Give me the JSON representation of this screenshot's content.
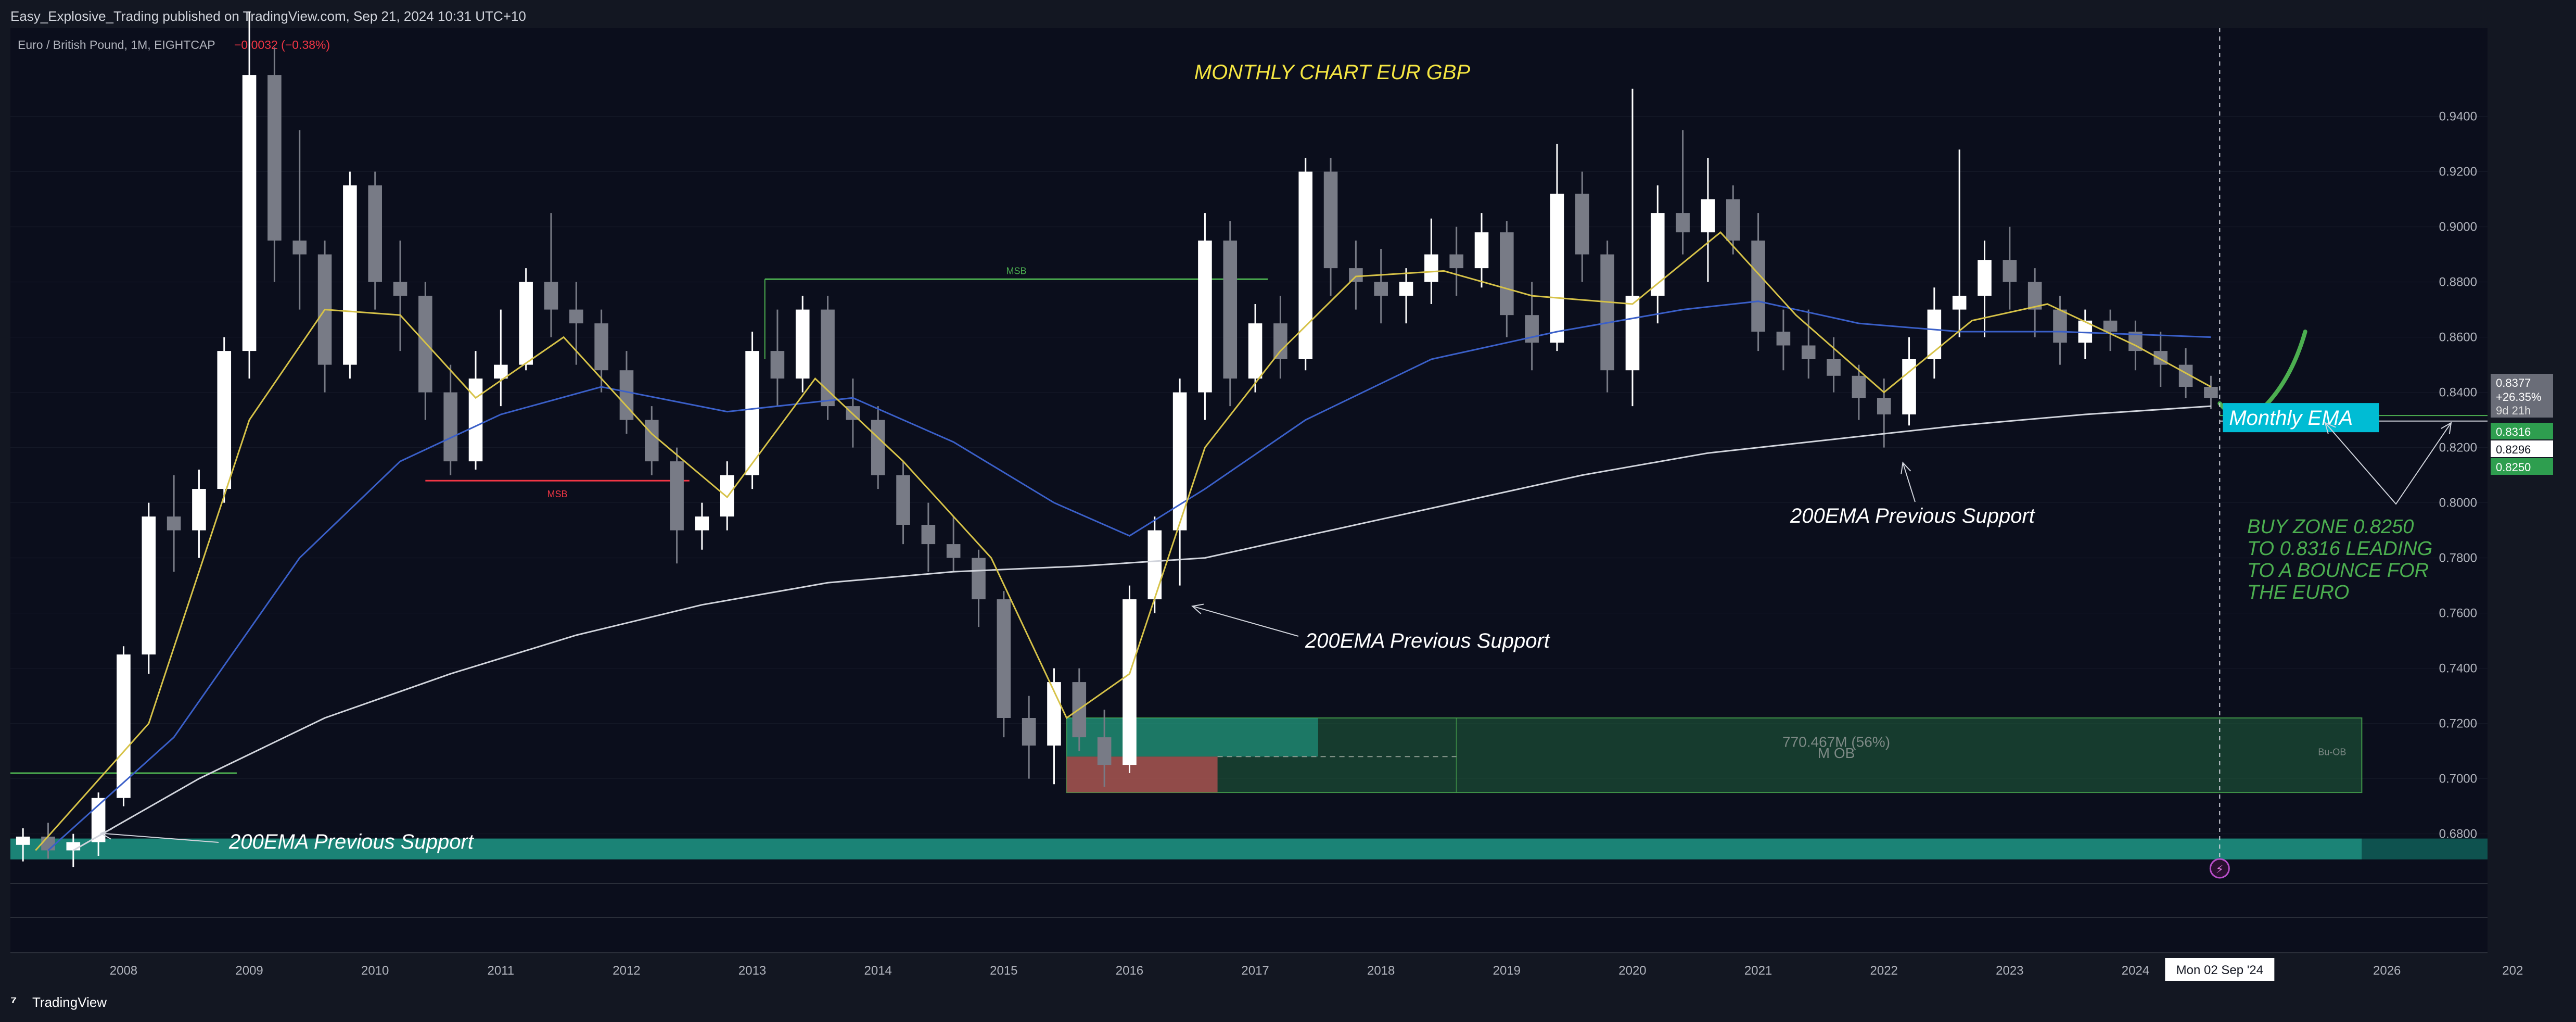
{
  "header": {
    "published_by": "Easy_Explosive_Trading published on TradingView.com, Sep 21, 2024 10:31 UTC+10",
    "symbol": "Euro / British Pound, 1M, EIGHTCAP",
    "change_value": "−0.0032 (−0.38%)"
  },
  "footer": {
    "brand": "TradingView"
  },
  "colors": {
    "background": "#0b0e1c",
    "frame": "#131722",
    "candle_up": "#ffffff",
    "candle_down": "#787b86",
    "ema_fast": "#d6c248",
    "ema_mid": "#3a5fc8",
    "ema_200": "#d1d4dc",
    "msb_green": "#4caf50",
    "msb_red": "#f23645",
    "annotation_yellow": "#f5e642",
    "annotation_green": "#4caf50",
    "ob_fill": "#1e5a3a",
    "ob_bright": "#22ab94",
    "ob_red": "#b05050",
    "monthly_ema_box": "#00bcd4",
    "price_label_green": "#2e9e4f"
  },
  "chart_data": {
    "type": "candlestick",
    "title": "MONTHLY CHART EUR GBP",
    "ylim": [
      0.662,
      0.972
    ],
    "yticks": [
      "0.9400",
      "0.9200",
      "0.9000",
      "0.8800",
      "0.8600",
      "0.8400",
      "0.8200",
      "0.8000",
      "0.7800",
      "0.7600",
      "0.7400",
      "0.7200",
      "0.7000",
      "0.6800"
    ],
    "xticks": [
      "2008",
      "2009",
      "2010",
      "2011",
      "2012",
      "2013",
      "2014",
      "2015",
      "2016",
      "2017",
      "2018",
      "2019",
      "2020",
      "2021",
      "2022",
      "2023",
      "2024",
      "2026",
      "202"
    ],
    "x_range": [
      2007.1,
      2026.8
    ],
    "crosshair": {
      "date_label": "Mon 02 Sep '24",
      "x": 2024.67
    },
    "candles": [
      {
        "year": 2007.2,
        "o": 0.676,
        "h": 0.682,
        "l": 0.67,
        "c": 0.679
      },
      {
        "year": 2007.4,
        "o": 0.679,
        "h": 0.684,
        "l": 0.671,
        "c": 0.674
      },
      {
        "year": 2007.6,
        "o": 0.674,
        "h": 0.68,
        "l": 0.668,
        "c": 0.677
      },
      {
        "year": 2007.8,
        "o": 0.677,
        "h": 0.695,
        "l": 0.672,
        "c": 0.693
      },
      {
        "year": 2008.0,
        "o": 0.693,
        "h": 0.748,
        "l": 0.69,
        "c": 0.745
      },
      {
        "year": 2008.2,
        "o": 0.745,
        "h": 0.8,
        "l": 0.738,
        "c": 0.795
      },
      {
        "year": 2008.4,
        "o": 0.795,
        "h": 0.81,
        "l": 0.775,
        "c": 0.79
      },
      {
        "year": 2008.6,
        "o": 0.79,
        "h": 0.812,
        "l": 0.78,
        "c": 0.805
      },
      {
        "year": 2008.8,
        "o": 0.805,
        "h": 0.86,
        "l": 0.8,
        "c": 0.855
      },
      {
        "year": 2009.0,
        "o": 0.855,
        "h": 0.978,
        "l": 0.845,
        "c": 0.955
      },
      {
        "year": 2009.2,
        "o": 0.955,
        "h": 0.965,
        "l": 0.88,
        "c": 0.895
      },
      {
        "year": 2009.4,
        "o": 0.895,
        "h": 0.935,
        "l": 0.87,
        "c": 0.89
      },
      {
        "year": 2009.6,
        "o": 0.89,
        "h": 0.895,
        "l": 0.84,
        "c": 0.85
      },
      {
        "year": 2009.8,
        "o": 0.85,
        "h": 0.92,
        "l": 0.845,
        "c": 0.915
      },
      {
        "year": 2010.0,
        "o": 0.915,
        "h": 0.92,
        "l": 0.87,
        "c": 0.88
      },
      {
        "year": 2010.2,
        "o": 0.88,
        "h": 0.895,
        "l": 0.855,
        "c": 0.875
      },
      {
        "year": 2010.4,
        "o": 0.875,
        "h": 0.88,
        "l": 0.83,
        "c": 0.84
      },
      {
        "year": 2010.6,
        "o": 0.84,
        "h": 0.85,
        "l": 0.81,
        "c": 0.815
      },
      {
        "year": 2010.8,
        "o": 0.815,
        "h": 0.855,
        "l": 0.812,
        "c": 0.845
      },
      {
        "year": 2011.0,
        "o": 0.845,
        "h": 0.87,
        "l": 0.835,
        "c": 0.85
      },
      {
        "year": 2011.2,
        "o": 0.85,
        "h": 0.885,
        "l": 0.848,
        "c": 0.88
      },
      {
        "year": 2011.4,
        "o": 0.88,
        "h": 0.905,
        "l": 0.86,
        "c": 0.87
      },
      {
        "year": 2011.6,
        "o": 0.87,
        "h": 0.88,
        "l": 0.85,
        "c": 0.865
      },
      {
        "year": 2011.8,
        "o": 0.865,
        "h": 0.87,
        "l": 0.84,
        "c": 0.848
      },
      {
        "year": 2012.0,
        "o": 0.848,
        "h": 0.855,
        "l": 0.825,
        "c": 0.83
      },
      {
        "year": 2012.2,
        "o": 0.83,
        "h": 0.835,
        "l": 0.81,
        "c": 0.815
      },
      {
        "year": 2012.4,
        "o": 0.815,
        "h": 0.82,
        "l": 0.778,
        "c": 0.79
      },
      {
        "year": 2012.6,
        "o": 0.79,
        "h": 0.8,
        "l": 0.783,
        "c": 0.795
      },
      {
        "year": 2012.8,
        "o": 0.795,
        "h": 0.815,
        "l": 0.79,
        "c": 0.81
      },
      {
        "year": 2013.0,
        "o": 0.81,
        "h": 0.862,
        "l": 0.805,
        "c": 0.855
      },
      {
        "year": 2013.2,
        "o": 0.855,
        "h": 0.87,
        "l": 0.835,
        "c": 0.845
      },
      {
        "year": 2013.4,
        "o": 0.845,
        "h": 0.875,
        "l": 0.84,
        "c": 0.87
      },
      {
        "year": 2013.6,
        "o": 0.87,
        "h": 0.875,
        "l": 0.83,
        "c": 0.835
      },
      {
        "year": 2013.8,
        "o": 0.835,
        "h": 0.845,
        "l": 0.82,
        "c": 0.83
      },
      {
        "year": 2014.0,
        "o": 0.83,
        "h": 0.835,
        "l": 0.805,
        "c": 0.81
      },
      {
        "year": 2014.2,
        "o": 0.81,
        "h": 0.815,
        "l": 0.785,
        "c": 0.792
      },
      {
        "year": 2014.4,
        "o": 0.792,
        "h": 0.8,
        "l": 0.775,
        "c": 0.785
      },
      {
        "year": 2014.6,
        "o": 0.785,
        "h": 0.795,
        "l": 0.775,
        "c": 0.78
      },
      {
        "year": 2014.8,
        "o": 0.78,
        "h": 0.783,
        "l": 0.755,
        "c": 0.765
      },
      {
        "year": 2015.0,
        "o": 0.765,
        "h": 0.768,
        "l": 0.715,
        "c": 0.722
      },
      {
        "year": 2015.2,
        "o": 0.722,
        "h": 0.73,
        "l": 0.7,
        "c": 0.712
      },
      {
        "year": 2015.4,
        "o": 0.712,
        "h": 0.74,
        "l": 0.698,
        "c": 0.735
      },
      {
        "year": 2015.6,
        "o": 0.735,
        "h": 0.74,
        "l": 0.71,
        "c": 0.715
      },
      {
        "year": 2015.8,
        "o": 0.715,
        "h": 0.725,
        "l": 0.697,
        "c": 0.705
      },
      {
        "year": 2016.0,
        "o": 0.705,
        "h": 0.77,
        "l": 0.702,
        "c": 0.765
      },
      {
        "year": 2016.2,
        "o": 0.765,
        "h": 0.795,
        "l": 0.76,
        "c": 0.79
      },
      {
        "year": 2016.4,
        "o": 0.79,
        "h": 0.845,
        "l": 0.77,
        "c": 0.84
      },
      {
        "year": 2016.6,
        "o": 0.84,
        "h": 0.905,
        "l": 0.83,
        "c": 0.895
      },
      {
        "year": 2016.8,
        "o": 0.895,
        "h": 0.902,
        "l": 0.835,
        "c": 0.845
      },
      {
        "year": 2017.0,
        "o": 0.845,
        "h": 0.872,
        "l": 0.84,
        "c": 0.865
      },
      {
        "year": 2017.2,
        "o": 0.865,
        "h": 0.875,
        "l": 0.845,
        "c": 0.852
      },
      {
        "year": 2017.4,
        "o": 0.852,
        "h": 0.925,
        "l": 0.848,
        "c": 0.92
      },
      {
        "year": 2017.6,
        "o": 0.92,
        "h": 0.925,
        "l": 0.875,
        "c": 0.885
      },
      {
        "year": 2017.8,
        "o": 0.885,
        "h": 0.895,
        "l": 0.87,
        "c": 0.88
      },
      {
        "year": 2018.0,
        "o": 0.88,
        "h": 0.892,
        "l": 0.865,
        "c": 0.875
      },
      {
        "year": 2018.2,
        "o": 0.875,
        "h": 0.885,
        "l": 0.865,
        "c": 0.88
      },
      {
        "year": 2018.4,
        "o": 0.88,
        "h": 0.903,
        "l": 0.872,
        "c": 0.89
      },
      {
        "year": 2018.6,
        "o": 0.89,
        "h": 0.9,
        "l": 0.875,
        "c": 0.885
      },
      {
        "year": 2018.8,
        "o": 0.885,
        "h": 0.905,
        "l": 0.878,
        "c": 0.898
      },
      {
        "year": 2019.0,
        "o": 0.898,
        "h": 0.902,
        "l": 0.86,
        "c": 0.868
      },
      {
        "year": 2019.2,
        "o": 0.868,
        "h": 0.88,
        "l": 0.848,
        "c": 0.858
      },
      {
        "year": 2019.4,
        "o": 0.858,
        "h": 0.93,
        "l": 0.855,
        "c": 0.912
      },
      {
        "year": 2019.6,
        "o": 0.912,
        "h": 0.92,
        "l": 0.88,
        "c": 0.89
      },
      {
        "year": 2019.8,
        "o": 0.89,
        "h": 0.895,
        "l": 0.84,
        "c": 0.848
      },
      {
        "year": 2020.0,
        "o": 0.848,
        "h": 0.95,
        "l": 0.835,
        "c": 0.875
      },
      {
        "year": 2020.2,
        "o": 0.875,
        "h": 0.915,
        "l": 0.865,
        "c": 0.905
      },
      {
        "year": 2020.4,
        "o": 0.905,
        "h": 0.935,
        "l": 0.89,
        "c": 0.898
      },
      {
        "year": 2020.6,
        "o": 0.898,
        "h": 0.925,
        "l": 0.88,
        "c": 0.91
      },
      {
        "year": 2020.8,
        "o": 0.91,
        "h": 0.915,
        "l": 0.89,
        "c": 0.895
      },
      {
        "year": 2021.0,
        "o": 0.895,
        "h": 0.905,
        "l": 0.855,
        "c": 0.862
      },
      {
        "year": 2021.2,
        "o": 0.862,
        "h": 0.87,
        "l": 0.848,
        "c": 0.857
      },
      {
        "year": 2021.4,
        "o": 0.857,
        "h": 0.87,
        "l": 0.845,
        "c": 0.852
      },
      {
        "year": 2021.6,
        "o": 0.852,
        "h": 0.86,
        "l": 0.84,
        "c": 0.846
      },
      {
        "year": 2021.8,
        "o": 0.846,
        "h": 0.85,
        "l": 0.83,
        "c": 0.838
      },
      {
        "year": 2022.0,
        "o": 0.838,
        "h": 0.845,
        "l": 0.82,
        "c": 0.832
      },
      {
        "year": 2022.2,
        "o": 0.832,
        "h": 0.86,
        "l": 0.828,
        "c": 0.852
      },
      {
        "year": 2022.4,
        "o": 0.852,
        "h": 0.878,
        "l": 0.845,
        "c": 0.87
      },
      {
        "year": 2022.6,
        "o": 0.87,
        "h": 0.928,
        "l": 0.86,
        "c": 0.875
      },
      {
        "year": 2022.8,
        "o": 0.875,
        "h": 0.895,
        "l": 0.86,
        "c": 0.888
      },
      {
        "year": 2023.0,
        "o": 0.888,
        "h": 0.9,
        "l": 0.87,
        "c": 0.88
      },
      {
        "year": 2023.2,
        "o": 0.88,
        "h": 0.885,
        "l": 0.86,
        "c": 0.87
      },
      {
        "year": 2023.4,
        "o": 0.87,
        "h": 0.875,
        "l": 0.85,
        "c": 0.858
      },
      {
        "year": 2023.6,
        "o": 0.858,
        "h": 0.87,
        "l": 0.852,
        "c": 0.866
      },
      {
        "year": 2023.8,
        "o": 0.866,
        "h": 0.87,
        "l": 0.855,
        "c": 0.862
      },
      {
        "year": 2024.0,
        "o": 0.862,
        "h": 0.866,
        "l": 0.848,
        "c": 0.855
      },
      {
        "year": 2024.2,
        "o": 0.855,
        "h": 0.862,
        "l": 0.842,
        "c": 0.85
      },
      {
        "year": 2024.4,
        "o": 0.85,
        "h": 0.856,
        "l": 0.838,
        "c": 0.842
      },
      {
        "year": 2024.6,
        "o": 0.842,
        "h": 0.846,
        "l": 0.834,
        "c": 0.838
      }
    ],
    "ema_fast": [
      [
        2007.3,
        0.674
      ],
      [
        2008.2,
        0.72
      ],
      [
        2009.0,
        0.83
      ],
      [
        2009.6,
        0.87
      ],
      [
        2010.2,
        0.868
      ],
      [
        2010.8,
        0.838
      ],
      [
        2011.5,
        0.86
      ],
      [
        2012.2,
        0.825
      ],
      [
        2012.8,
        0.802
      ],
      [
        2013.5,
        0.845
      ],
      [
        2014.2,
        0.815
      ],
      [
        2014.9,
        0.78
      ],
      [
        2015.5,
        0.722
      ],
      [
        2016.0,
        0.738
      ],
      [
        2016.6,
        0.82
      ],
      [
        2017.2,
        0.855
      ],
      [
        2017.8,
        0.882
      ],
      [
        2018.5,
        0.884
      ],
      [
        2019.2,
        0.875
      ],
      [
        2020.0,
        0.872
      ],
      [
        2020.7,
        0.898
      ],
      [
        2021.3,
        0.868
      ],
      [
        2022.0,
        0.84
      ],
      [
        2022.7,
        0.866
      ],
      [
        2023.3,
        0.872
      ],
      [
        2024.0,
        0.857
      ],
      [
        2024.6,
        0.842
      ]
    ],
    "ema_mid": [
      [
        2007.4,
        0.674
      ],
      [
        2008.4,
        0.715
      ],
      [
        2009.4,
        0.78
      ],
      [
        2010.2,
        0.815
      ],
      [
        2011.0,
        0.832
      ],
      [
        2011.8,
        0.842
      ],
      [
        2012.8,
        0.833
      ],
      [
        2013.8,
        0.838
      ],
      [
        2014.6,
        0.822
      ],
      [
        2015.4,
        0.8
      ],
      [
        2016.0,
        0.788
      ],
      [
        2016.6,
        0.805
      ],
      [
        2017.4,
        0.83
      ],
      [
        2018.4,
        0.852
      ],
      [
        2019.4,
        0.862
      ],
      [
        2020.4,
        0.87
      ],
      [
        2021.0,
        0.873
      ],
      [
        2021.8,
        0.865
      ],
      [
        2022.6,
        0.862
      ],
      [
        2023.4,
        0.862
      ],
      [
        2024.0,
        0.861
      ],
      [
        2024.6,
        0.86
      ]
    ],
    "ema_200": [
      [
        2007.6,
        0.674
      ],
      [
        2008.6,
        0.7
      ],
      [
        2009.6,
        0.722
      ],
      [
        2010.6,
        0.738
      ],
      [
        2011.6,
        0.752
      ],
      [
        2012.6,
        0.763
      ],
      [
        2013.6,
        0.771
      ],
      [
        2014.6,
        0.775
      ],
      [
        2015.6,
        0.777
      ],
      [
        2016.6,
        0.78
      ],
      [
        2017.6,
        0.79
      ],
      [
        2018.6,
        0.8
      ],
      [
        2019.6,
        0.81
      ],
      [
        2020.6,
        0.818
      ],
      [
        2021.6,
        0.823
      ],
      [
        2022.6,
        0.828
      ],
      [
        2023.6,
        0.832
      ],
      [
        2024.6,
        0.835
      ]
    ],
    "projection": [
      [
        2024.67,
        0.836
      ],
      [
        2024.85,
        0.832
      ],
      [
        2025.05,
        0.836
      ],
      [
        2025.25,
        0.852
      ],
      [
        2025.35,
        0.862
      ]
    ],
    "msb_levels": [
      {
        "label": "MSB",
        "price": 0.881,
        "x0": 2013.1,
        "x1": 2017.1,
        "color": "green"
      },
      {
        "label": "MSB",
        "price": 0.808,
        "x0": 2010.4,
        "x1": 2012.5,
        "color": "red"
      }
    ],
    "support_line_2007": {
      "price": 0.702,
      "x0": 2007.1,
      "x1": 2008.9
    },
    "order_block": {
      "label": "770.467M (56%)",
      "sublabel": "M OB",
      "tag": "Bu-OB",
      "price_top": 0.722,
      "price_bottom": 0.695,
      "x0": 2015.5,
      "x1": 2025.8,
      "bright_until_x": 2017.5,
      "bright_bottom": 0.708,
      "red_top": 0.708,
      "red_until_x": 2016.7,
      "divider_x": 2018.6
    },
    "bottom_band": {
      "price_top": 0.6783,
      "price_bottom": 0.6715,
      "x0": 2007.1,
      "x1": 2025.8,
      "tail_x1": 2026.8
    },
    "annotations": {
      "support_label": "200EMA Previous Support",
      "monthly_ema": "Monthly EMA",
      "buy_zone": [
        "BUY ZONE 0.8250",
        "TO 0.8316 LEADING",
        "TO A BOUNCE FOR",
        "THE EURO"
      ]
    },
    "buy_zone_lines": [
      0.8316,
      0.8296
    ],
    "price_labels": {
      "last": "0.8377",
      "pct": "+26.35%",
      "timer": "9d 21h",
      "green1": "0.8316",
      "white": "0.8296",
      "green2": "0.8250"
    }
  }
}
